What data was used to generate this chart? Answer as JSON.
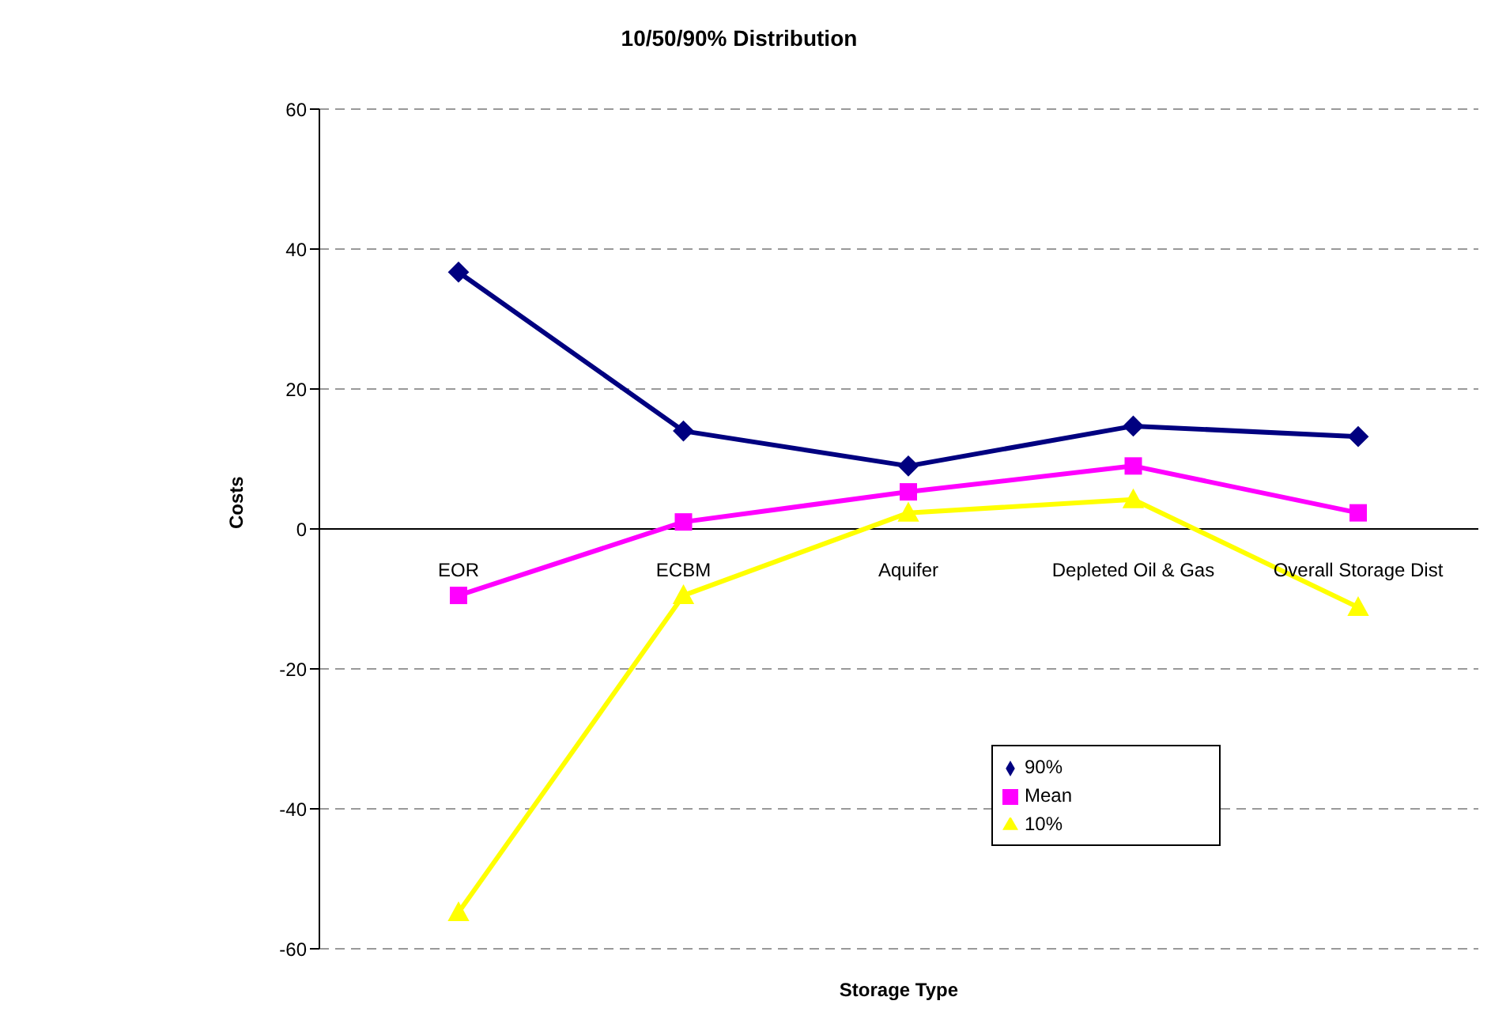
{
  "chart_data": {
    "type": "line",
    "title": "10/50/90% Distribution",
    "xlabel": "Storage Type",
    "ylabel": "Costs",
    "categories": [
      "EOR",
      "ECBM",
      "Aquifer",
      "Depleted Oil & Gas",
      "Overall Storage Dist"
    ],
    "series": [
      {
        "name": "90%",
        "color": "#000080",
        "marker": "diamond",
        "values": [
          36.7,
          14,
          9,
          14.7,
          13.2
        ]
      },
      {
        "name": "Mean",
        "color": "#ff00ff",
        "marker": "square",
        "values": [
          -9.5,
          1,
          5.3,
          9,
          2.3
        ]
      },
      {
        "name": "10%",
        "color": "#ffff00",
        "marker": "triangle",
        "values": [
          -54.8,
          -9.5,
          2.3,
          4.2,
          -11.2
        ]
      }
    ],
    "ylim": [
      -60,
      60
    ],
    "yticks": [
      -60,
      -40,
      -20,
      0,
      20,
      40,
      60
    ],
    "grid": "y",
    "legend": "bottom right",
    "line_style": "solid"
  }
}
